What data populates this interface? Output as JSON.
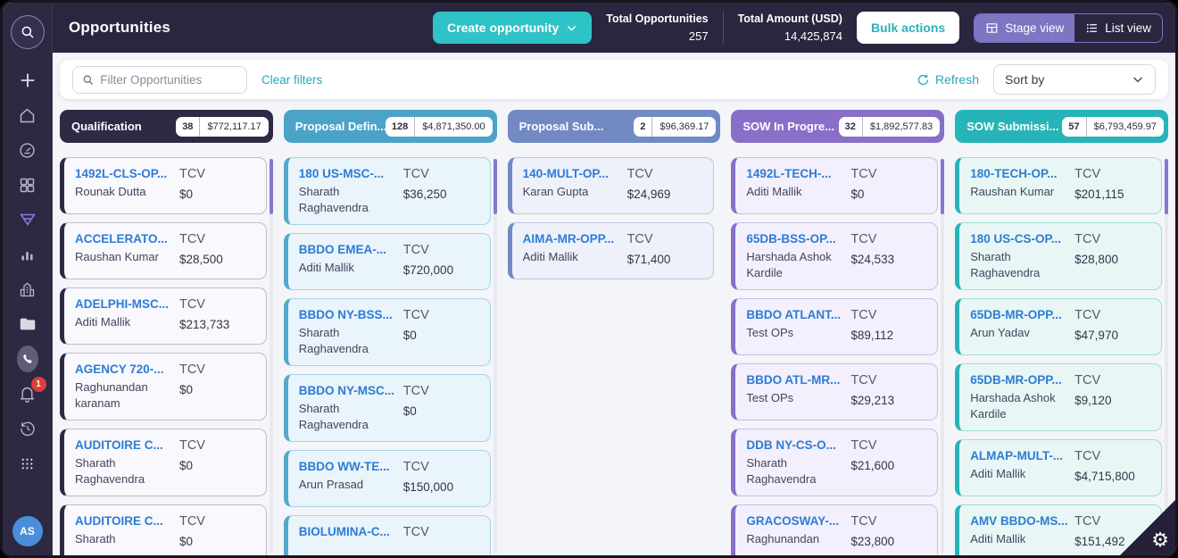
{
  "header": {
    "title": "Opportunities",
    "create_button": "Create opportunity",
    "stats": [
      {
        "label": "Total Opportunities",
        "value": "257"
      },
      {
        "label": "Total Amount (USD)",
        "value": "14,425,874"
      }
    ],
    "bulk_actions": "Bulk actions",
    "view_toggle": {
      "stage": "Stage view",
      "list": "List view",
      "active": "stage"
    }
  },
  "filter_bar": {
    "search_placeholder": "Filter Opportunities",
    "search_value": "",
    "clear_filters": "Clear filters",
    "refresh": "Refresh",
    "sort_by": "Sort by"
  },
  "sidebar": {
    "icons": [
      "search-icon",
      "plus-icon",
      "home-icon",
      "dashboard-icon",
      "apps-grid-icon",
      "funnel-icon",
      "bar-chart-icon",
      "building-icon",
      "folder-icon",
      "phone-icon",
      "bell-icon",
      "history-icon",
      "app-launcher-icon",
      "avatar"
    ],
    "active_icon": "funnel-icon",
    "notification_count": "1",
    "avatar_initials": "AS"
  },
  "board": {
    "tcv_label": "TCV",
    "columns": [
      {
        "name": "Qualification",
        "count": "38",
        "amount": "$772,117.17",
        "header_color": "#2e2a45",
        "card_bg": "#f8f8fd",
        "card_border": "#bcbccd",
        "accent": "#2e2a45",
        "scrollbar": true,
        "cards": [
          {
            "title": "1492L-CLS-OP...",
            "owner": "Rounak Dutta",
            "tcv": "$0"
          },
          {
            "title": "ACCELERATO...",
            "owner": "Raushan Kumar",
            "tcv": "$28,500"
          },
          {
            "title": "ADELPHI-MSC...",
            "owner": "Aditi Mallik",
            "tcv": "$213,733"
          },
          {
            "title": "AGENCY 720-...",
            "owner": "Raghunandan karanam",
            "tcv": "$0"
          },
          {
            "title": "AUDITOIRE C...",
            "owner": "Sharath Raghavendra",
            "tcv": "$0"
          },
          {
            "title": "AUDITOIRE C...",
            "owner": "Sharath",
            "tcv": "$0"
          }
        ]
      },
      {
        "name": "Proposal Defin...",
        "count": "128",
        "amount": "$4,871,350.00",
        "header_color": "#4ba3c8",
        "card_bg": "#e9f4fb",
        "card_border": "#a8d3e7",
        "accent": "#54a8cc",
        "scrollbar": true,
        "cards": [
          {
            "title": "180 US-MSC-...",
            "owner": "Sharath Raghavendra",
            "tcv": "$36,250"
          },
          {
            "title": "BBDO EMEA-...",
            "owner": "Aditi Mallik",
            "tcv": "$720,000"
          },
          {
            "title": "BBDO NY-BSS...",
            "owner": "Sharath Raghavendra",
            "tcv": "$0"
          },
          {
            "title": "BBDO NY-MSC...",
            "owner": "Sharath Raghavendra",
            "tcv": "$0"
          },
          {
            "title": "BBDO WW-TE...",
            "owner": "Arun Prasad",
            "tcv": "$150,000"
          },
          {
            "title": "BIOLUMINA-C...",
            "owner": "",
            "tcv": ""
          }
        ]
      },
      {
        "name": "Proposal Sub...",
        "count": "2",
        "amount": "$96,369.17",
        "header_color": "#7289c4",
        "card_bg": "#eef0fa",
        "card_border": "#bcc5e4",
        "accent": "#7289c4",
        "scrollbar": false,
        "cards": [
          {
            "title": "140-MULT-OP...",
            "owner": "Karan Gupta",
            "tcv": "$24,969"
          },
          {
            "title": "AIMA-MR-OPP...",
            "owner": "Aditi Mallik",
            "tcv": "$71,400"
          }
        ]
      },
      {
        "name": "SOW In Progre...",
        "count": "32",
        "amount": "$1,892,577.83",
        "header_color": "#8a6fc8",
        "card_bg": "#f3effc",
        "card_border": "#cabde8",
        "accent": "#8a6fc8",
        "scrollbar": true,
        "cards": [
          {
            "title": "1492L-TECH-...",
            "owner": "Aditi Mallik",
            "tcv": "$0"
          },
          {
            "title": "65DB-BSS-OP...",
            "owner": "Harshada Ashok Kardile",
            "tcv": "$24,533"
          },
          {
            "title": "BBDO ATLANT...",
            "owner": "Test OPs",
            "tcv": "$89,112"
          },
          {
            "title": "BBDO ATL-MR...",
            "owner": "Test OPs",
            "tcv": "$29,213"
          },
          {
            "title": "DDB NY-CS-O...",
            "owner": "Sharath Raghavendra",
            "tcv": "$21,600"
          },
          {
            "title": "GRACOSWAY-...",
            "owner": "Raghunandan",
            "tcv": "$23,800"
          }
        ]
      },
      {
        "name": "SOW Submissi...",
        "count": "57",
        "amount": "$6,793,459.97",
        "header_color": "#27b4b8",
        "card_bg": "#e8f7f6",
        "card_border": "#9edcd8",
        "accent": "#27b4b8",
        "scrollbar": true,
        "cards": [
          {
            "title": "180-TECH-OP...",
            "owner": "Raushan Kumar",
            "tcv": "$201,115"
          },
          {
            "title": "180 US-CS-OP...",
            "owner": "Sharath Raghavendra",
            "tcv": "$28,800"
          },
          {
            "title": "65DB-MR-OPP...",
            "owner": "Arun Yadav",
            "tcv": "$47,970"
          },
          {
            "title": "65DB-MR-OPP...",
            "owner": "Harshada Ashok Kardile",
            "tcv": "$9,120"
          },
          {
            "title": "ALMAP-MULT-...",
            "owner": "Aditi Mallik",
            "tcv": "$4,715,800"
          },
          {
            "title": "AMV BBDO-MS...",
            "owner": "Aditi Mallik",
            "tcv": "$151,492"
          }
        ]
      }
    ]
  },
  "colors": {
    "accent_teal": "#2ec3c6",
    "accent_purple": "#7e75c3",
    "link_blue": "#2d7cd4",
    "badge_red": "#e03c3c",
    "header_bg": "#2a2640",
    "sidebar_bg": "#2d2942"
  },
  "corner": {
    "gear": "⚙"
  }
}
